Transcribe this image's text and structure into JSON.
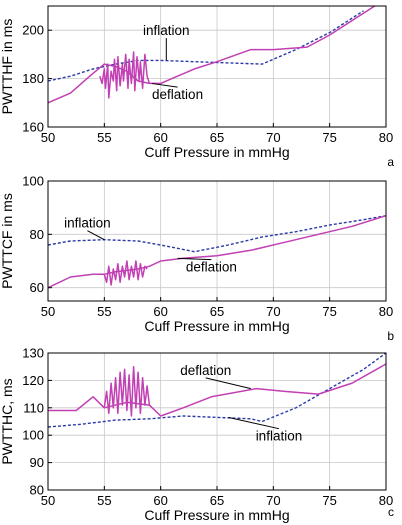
{
  "chart_data": [
    {
      "type": "line",
      "panel_label": "a",
      "xlabel": "Cuff Pressure in mmHg",
      "ylabel": "PWTTHF in ms",
      "xlim": [
        50,
        80
      ],
      "ylim": [
        160,
        210
      ],
      "xticks": [
        50,
        55,
        60,
        65,
        70,
        75,
        80
      ],
      "yticks": [
        160,
        180,
        200
      ],
      "grid": true,
      "series": [
        {
          "name": "inflation",
          "style": "dashed",
          "color": "#2b3aa8",
          "points": [
            [
              50,
              179
            ],
            [
              52,
              181
            ],
            [
              54,
              184
            ],
            [
              56,
              186
            ],
            [
              58,
              187.5
            ],
            [
              60,
              187.5
            ],
            [
              63,
              187
            ],
            [
              66,
              186.5
            ],
            [
              69,
              186
            ],
            [
              72,
              192
            ],
            [
              75,
              199
            ],
            [
              78,
              208
            ]
          ]
        },
        {
          "name": "deflation",
          "style": "solid",
          "color": "#c23fb4",
          "points": [
            [
              50,
              170
            ],
            [
              52,
              174
            ],
            [
              53.7,
              181
            ],
            [
              55,
              186
            ],
            [
              56,
              185
            ],
            [
              57,
              183
            ],
            [
              58,
              179
            ],
            [
              59,
              178
            ],
            [
              60,
              178
            ],
            [
              61,
              180
            ],
            [
              63,
              184
            ],
            [
              65,
              187
            ],
            [
              68,
              192
            ],
            [
              70,
              192
            ],
            [
              73,
              193
            ],
            [
              75,
              198
            ],
            [
              77,
              204
            ],
            [
              79,
              210
            ]
          ]
        },
        {
          "name": "deflation-noise",
          "style": "solid",
          "color": "#c23fb4",
          "points": [
            [
              54.6,
              181
            ],
            [
              54.8,
              178
            ],
            [
              55,
              184
            ],
            [
              55.1,
              176
            ],
            [
              55.3,
              186
            ],
            [
              55.4,
              172
            ],
            [
              55.6,
              183
            ],
            [
              55.8,
              179
            ],
            [
              55.9,
              188
            ],
            [
              56.1,
              175
            ],
            [
              56.2,
              189
            ],
            [
              56.4,
              177
            ],
            [
              56.6,
              186
            ],
            [
              56.7,
              179
            ],
            [
              56.9,
              190
            ],
            [
              57.1,
              176
            ],
            [
              57.2,
              188
            ],
            [
              57.4,
              178
            ],
            [
              57.6,
              191
            ],
            [
              57.7,
              175
            ],
            [
              57.9,
              189
            ],
            [
              58.1,
              179
            ],
            [
              58.2,
              187
            ],
            [
              58.4,
              176
            ],
            [
              58.6,
              190
            ],
            [
              58.8,
              181
            ],
            [
              59,
              178
            ]
          ]
        }
      ],
      "annotations": [
        {
          "text": "inflation",
          "x": 60.5,
          "y": 198,
          "target": [
            60.5,
            187.5
          ]
        },
        {
          "text": "deflation",
          "x": 61.5,
          "y": 171.5,
          "target": [
            59.2,
            178
          ]
        }
      ]
    },
    {
      "type": "line",
      "panel_label": "b",
      "xlabel": "Cuff Pressure in mmHg",
      "ylabel": "PWTTCF in ms",
      "xlim": [
        50,
        80
      ],
      "ylim": [
        55,
        100
      ],
      "xticks": [
        50,
        55,
        60,
        65,
        70,
        75,
        80
      ],
      "yticks": [
        60,
        80,
        100
      ],
      "grid": true,
      "series": [
        {
          "name": "inflation",
          "style": "dashed",
          "color": "#2b3aa8",
          "points": [
            [
              50,
              76
            ],
            [
              52,
              77.5
            ],
            [
              55,
              78
            ],
            [
              58,
              77.5
            ],
            [
              60,
              76
            ],
            [
              63,
              73.5
            ],
            [
              66,
              76
            ],
            [
              69,
              79
            ],
            [
              72,
              81
            ],
            [
              75,
              83.5
            ],
            [
              78,
              85.5
            ],
            [
              80,
              87
            ]
          ]
        },
        {
          "name": "deflation",
          "style": "solid",
          "color": "#c23fb4",
          "points": [
            [
              50,
              60
            ],
            [
              52,
              64
            ],
            [
              54,
              65
            ],
            [
              55,
              65
            ],
            [
              56,
              66
            ],
            [
              58,
              67
            ],
            [
              59,
              68
            ],
            [
              60,
              70
            ],
            [
              62,
              71
            ],
            [
              65,
              72
            ],
            [
              68,
              74
            ],
            [
              71,
              77
            ],
            [
              74,
              80
            ],
            [
              77,
              83
            ],
            [
              80,
              87
            ]
          ]
        },
        {
          "name": "deflation-noise",
          "style": "solid",
          "color": "#c23fb4",
          "points": [
            [
              55,
              65
            ],
            [
              55.2,
              62
            ],
            [
              55.4,
              68
            ],
            [
              55.6,
              61
            ],
            [
              55.8,
              67
            ],
            [
              56,
              63
            ],
            [
              56.2,
              69
            ],
            [
              56.4,
              62
            ],
            [
              56.6,
              68
            ],
            [
              56.8,
              64
            ],
            [
              57,
              70
            ],
            [
              57.2,
              63
            ],
            [
              57.4,
              68
            ],
            [
              57.6,
              64
            ],
            [
              57.8,
              70
            ],
            [
              58,
              63
            ],
            [
              58.2,
              69
            ],
            [
              58.4,
              64
            ],
            [
              58.6,
              68
            ],
            [
              58.8,
              67
            ]
          ]
        }
      ],
      "annotations": [
        {
          "text": "inflation",
          "x": 53.5,
          "y": 82.5,
          "target": [
            55,
            78
          ]
        },
        {
          "text": "deflation",
          "x": 64.5,
          "y": 66,
          "target": [
            61.5,
            71
          ]
        }
      ]
    },
    {
      "type": "line",
      "panel_label": "c",
      "xlabel": "Cuff Pressure in mmHg",
      "ylabel": "PWTTHC, ms",
      "xlim": [
        50,
        80
      ],
      "ylim": [
        80,
        130
      ],
      "xticks": [
        50,
        55,
        60,
        65,
        70,
        75,
        80
      ],
      "yticks": [
        80,
        90,
        100,
        110,
        120,
        130
      ],
      "grid": true,
      "series": [
        {
          "name": "inflation",
          "style": "dashed",
          "color": "#2b3aa8",
          "points": [
            [
              50,
              103
            ],
            [
              53,
              104
            ],
            [
              56,
              105.5
            ],
            [
              59,
              106
            ],
            [
              62,
              107
            ],
            [
              65,
              106.5
            ],
            [
              68,
              106
            ],
            [
              69,
              105
            ],
            [
              72,
              110
            ],
            [
              75,
              117
            ],
            [
              78,
              124
            ],
            [
              80,
              130
            ]
          ]
        },
        {
          "name": "deflation",
          "style": "solid",
          "color": "#c23fb4",
          "points": [
            [
              50,
              109
            ],
            [
              52.5,
              109
            ],
            [
              54,
              114
            ],
            [
              55,
              110
            ],
            [
              57,
              112
            ],
            [
              59,
              111
            ],
            [
              60,
              107
            ],
            [
              62,
              110
            ],
            [
              64.5,
              114
            ],
            [
              68.5,
              117
            ],
            [
              71,
              116
            ],
            [
              74,
              115
            ],
            [
              77,
              119
            ],
            [
              80,
              126
            ]
          ]
        },
        {
          "name": "deflation-noise",
          "style": "solid",
          "color": "#c23fb4",
          "points": [
            [
              55,
              110
            ],
            [
              55.2,
              116
            ],
            [
              55.4,
              108
            ],
            [
              55.6,
              119
            ],
            [
              55.8,
              110
            ],
            [
              56,
              121
            ],
            [
              56.2,
              108
            ],
            [
              56.4,
              123
            ],
            [
              56.6,
              111
            ],
            [
              56.8,
              124
            ],
            [
              57,
              109
            ],
            [
              57.2,
              122
            ],
            [
              57.4,
              107
            ],
            [
              57.6,
              125
            ],
            [
              57.8,
              110
            ],
            [
              58,
              123
            ],
            [
              58.2,
              108
            ],
            [
              58.4,
              121
            ],
            [
              58.6,
              111
            ],
            [
              58.8,
              118
            ],
            [
              59,
              111
            ]
          ]
        }
      ],
      "annotations": [
        {
          "text": "deflation",
          "x": 64,
          "y": 122,
          "target": [
            68,
            117
          ]
        },
        {
          "text": "inflation",
          "x": 70.5,
          "y": 98,
          "target": [
            66,
            106.5
          ]
        }
      ]
    }
  ]
}
